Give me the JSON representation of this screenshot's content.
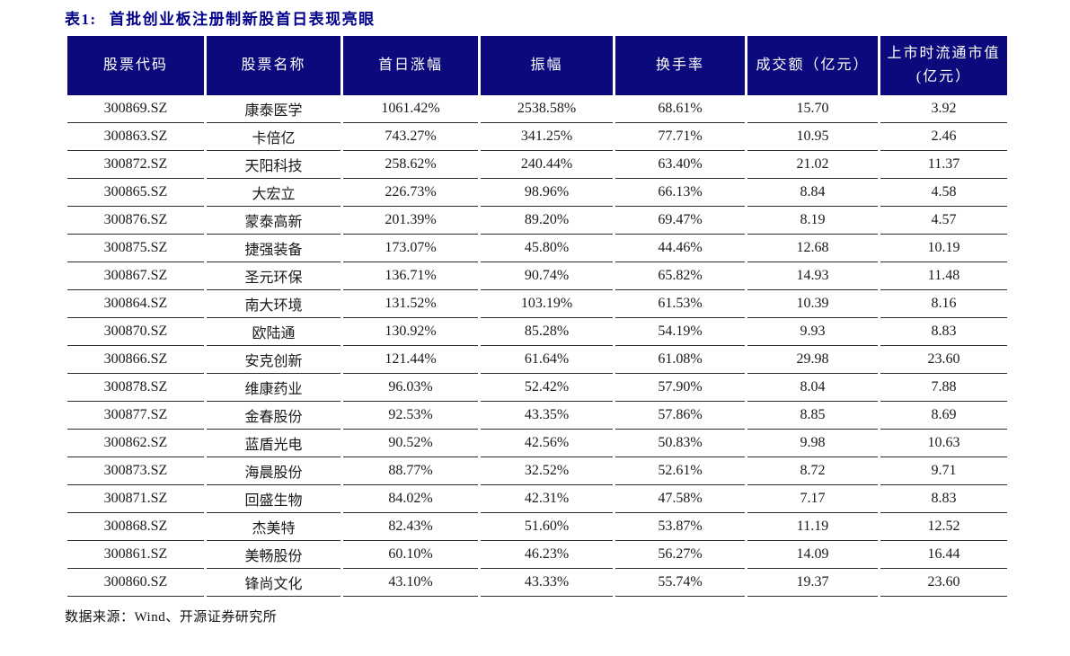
{
  "page": {
    "title_tag": "表1:",
    "title_text": "首批创业板注册制新股首日表现亮眼",
    "source_note": "数据来源：Wind、开源证券研究所"
  },
  "colors": {
    "title_navy": "#00008b",
    "header_background": "#0a0a7d",
    "header_divider": "#02025a",
    "header_text": "#ffffff",
    "row_border": "#2b2b2b",
    "body_text": "#1a1a1a"
  },
  "table": {
    "columns": [
      "股票代码",
      "股票名称",
      "首日涨幅",
      "振幅",
      "换手率",
      "成交额（亿元）",
      {
        "line1": "上市时流通市值",
        "line2": "(亿元）"
      }
    ],
    "rows": [
      {
        "code": "300869.SZ",
        "name": "康泰医学",
        "first_day_gain": "1061.42%",
        "amplitude": "2538.58%",
        "turnover_rate": "68.61%",
        "trade_value": "15.70",
        "float_cap": "3.92"
      },
      {
        "code": "300863.SZ",
        "name": "卡倍亿",
        "first_day_gain": "743.27%",
        "amplitude": "341.25%",
        "turnover_rate": "77.71%",
        "trade_value": "10.95",
        "float_cap": "2.46"
      },
      {
        "code": "300872.SZ",
        "name": "天阳科技",
        "first_day_gain": "258.62%",
        "amplitude": "240.44%",
        "turnover_rate": "63.40%",
        "trade_value": "21.02",
        "float_cap": "11.37"
      },
      {
        "code": "300865.SZ",
        "name": "大宏立",
        "first_day_gain": "226.73%",
        "amplitude": "98.96%",
        "turnover_rate": "66.13%",
        "trade_value": "8.84",
        "float_cap": "4.58"
      },
      {
        "code": "300876.SZ",
        "name": "蒙泰高新",
        "first_day_gain": "201.39%",
        "amplitude": "89.20%",
        "turnover_rate": "69.47%",
        "trade_value": "8.19",
        "float_cap": "4.57"
      },
      {
        "code": "300875.SZ",
        "name": "捷强装备",
        "first_day_gain": "173.07%",
        "amplitude": "45.80%",
        "turnover_rate": "44.46%",
        "trade_value": "12.68",
        "float_cap": "10.19"
      },
      {
        "code": "300867.SZ",
        "name": "圣元环保",
        "first_day_gain": "136.71%",
        "amplitude": "90.74%",
        "turnover_rate": "65.82%",
        "trade_value": "14.93",
        "float_cap": "11.48"
      },
      {
        "code": "300864.SZ",
        "name": "南大环境",
        "first_day_gain": "131.52%",
        "amplitude": "103.19%",
        "turnover_rate": "61.53%",
        "trade_value": "10.39",
        "float_cap": "8.16"
      },
      {
        "code": "300870.SZ",
        "name": "欧陆通",
        "first_day_gain": "130.92%",
        "amplitude": "85.28%",
        "turnover_rate": "54.19%",
        "trade_value": "9.93",
        "float_cap": "8.83"
      },
      {
        "code": "300866.SZ",
        "name": "安克创新",
        "first_day_gain": "121.44%",
        "amplitude": "61.64%",
        "turnover_rate": "61.08%",
        "trade_value": "29.98",
        "float_cap": "23.60"
      },
      {
        "code": "300878.SZ",
        "name": "维康药业",
        "first_day_gain": "96.03%",
        "amplitude": "52.42%",
        "turnover_rate": "57.90%",
        "trade_value": "8.04",
        "float_cap": "7.88"
      },
      {
        "code": "300877.SZ",
        "name": "金春股份",
        "first_day_gain": "92.53%",
        "amplitude": "43.35%",
        "turnover_rate": "57.86%",
        "trade_value": "8.85",
        "float_cap": "8.69"
      },
      {
        "code": "300862.SZ",
        "name": "蓝盾光电",
        "first_day_gain": "90.52%",
        "amplitude": "42.56%",
        "turnover_rate": "50.83%",
        "trade_value": "9.98",
        "float_cap": "10.63"
      },
      {
        "code": "300873.SZ",
        "name": "海晨股份",
        "first_day_gain": "88.77%",
        "amplitude": "32.52%",
        "turnover_rate": "52.61%",
        "trade_value": "8.72",
        "float_cap": "9.71"
      },
      {
        "code": "300871.SZ",
        "name": "回盛生物",
        "first_day_gain": "84.02%",
        "amplitude": "42.31%",
        "turnover_rate": "47.58%",
        "trade_value": "7.17",
        "float_cap": "8.83"
      },
      {
        "code": "300868.SZ",
        "name": "杰美特",
        "first_day_gain": "82.43%",
        "amplitude": "51.60%",
        "turnover_rate": "53.87%",
        "trade_value": "11.19",
        "float_cap": "12.52"
      },
      {
        "code": "300861.SZ",
        "name": "美畅股份",
        "first_day_gain": "60.10%",
        "amplitude": "46.23%",
        "turnover_rate": "56.27%",
        "trade_value": "14.09",
        "float_cap": "16.44"
      },
      {
        "code": "300860.SZ",
        "name": "锋尚文化",
        "first_day_gain": "43.10%",
        "amplitude": "43.33%",
        "turnover_rate": "55.74%",
        "trade_value": "19.37",
        "float_cap": "23.60"
      }
    ]
  }
}
